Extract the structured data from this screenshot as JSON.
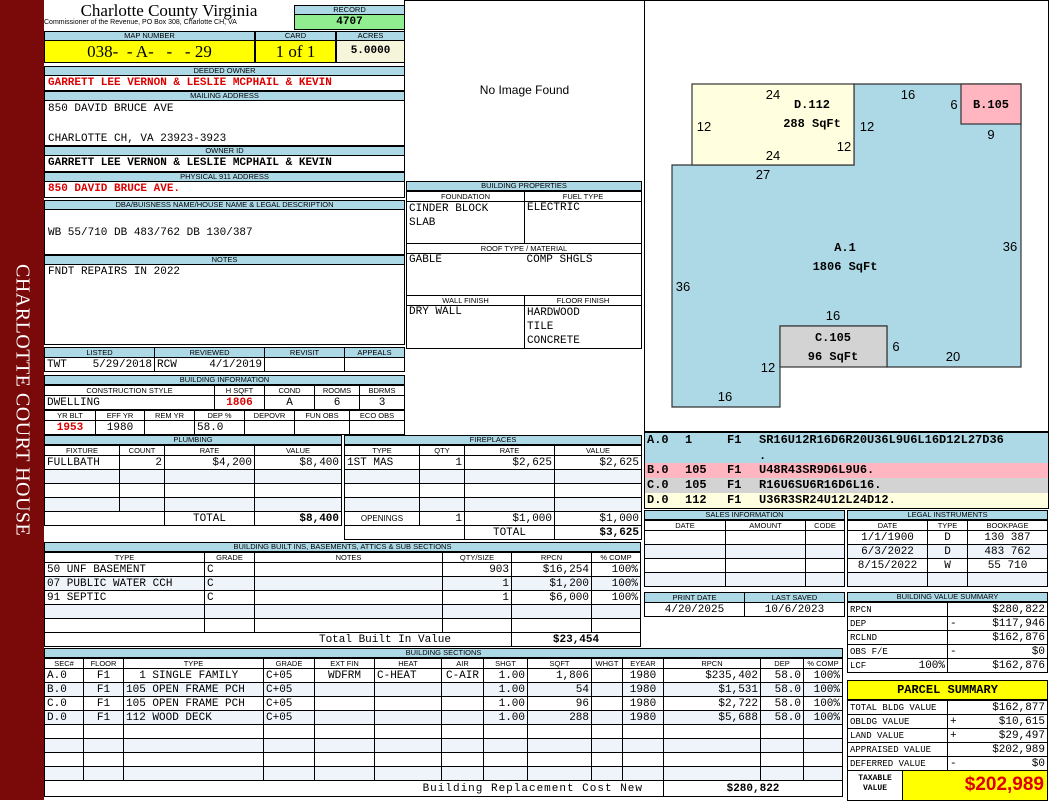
{
  "sidebar_title": "CHARLOTTE COURT HOUSE",
  "header": {
    "title": "Charlotte County Virginia",
    "subtitle": "Commissioner of the Revenue, PO Box 308, Charlotte CH, VA",
    "record_label": "RECORD",
    "record": "4707"
  },
  "parcel": {
    "map_label": "MAP NUMBER",
    "map": "038-  - A-   -   - 29",
    "card_label": "CARD",
    "card": "1 of 1",
    "acres_label": "ACRES",
    "acres": "5.0000"
  },
  "owner": {
    "deeded_label": "DEEDED OWNER",
    "deeded": "GARRETT LEE VERNON & LESLIE MCPHAIL & KEVIN",
    "mailing_label": "MAILING ADDRESS",
    "mailing_line1": "850 DAVID BRUCE AVE",
    "mailing_line2": "CHARLOTTE CH, VA 23923-3923",
    "owner_id_label": "OWNER ID",
    "owner_id": "GARRETT LEE VERNON & LESLIE MCPHAIL & KEVIN",
    "physical_label": "PHYSICAL 911 ADDRESS",
    "physical": "850 DAVID BRUCE AVE."
  },
  "legal": {
    "label": "DBA/BUISNESS NAME/HOUSE NAME & LEGAL DESCRIPTION",
    "text": "WB 55/710 DB 483/762 DB 130/387"
  },
  "notes": {
    "label": "NOTES",
    "text": "FNDT REPAIRS IN 2022"
  },
  "image": {
    "text": "No Image Found"
  },
  "building_properties": {
    "title": "BUILDING PROPERTIES",
    "foundation_label": "FOUNDATION",
    "foundation": [
      "CINDER BLOCK",
      "SLAB"
    ],
    "fuel_label": "FUEL TYPE",
    "fuel": "ELECTRIC",
    "roof_label": "ROOF TYPE / MATERIAL",
    "roof_type": "GABLE",
    "roof_material": "COMP SHGLS",
    "wall_label": "WALL FINISH",
    "wall": "DRY WALL",
    "floor_label": "FLOOR FINISH",
    "floor": [
      "HARDWOOD",
      "TILE",
      "CONCRETE"
    ]
  },
  "listing": {
    "columns": [
      "LISTED",
      "REVIEWED",
      "REVISIT",
      "APPEALS"
    ],
    "listed_by": "TWT",
    "listed_date": "5/29/2018",
    "reviewed_by": "RCW",
    "reviewed_date": "4/1/2019"
  },
  "building_info": {
    "title": "BUILDING INFORMATION",
    "columns1": [
      "CONSTRUCTION STYLE",
      "H SQFT",
      "COND",
      "ROOMS",
      "BDRMS"
    ],
    "values1": [
      "DWELLING",
      "1806",
      "A",
      "6",
      "3"
    ],
    "columns2": [
      "YR BLT",
      "EFF YR",
      "REM YR",
      "DEP %",
      "DEPOVR",
      "FUN OBS",
      "ECO OBS"
    ],
    "values2": [
      "1953",
      "1980",
      "",
      "58.0",
      "",
      "",
      ""
    ]
  },
  "plumbing": {
    "title": "PLUMBING",
    "columns": [
      "FIXTURE",
      "COUNT",
      "RATE",
      "VALUE"
    ],
    "rows": [
      [
        "FULLBATH",
        "2",
        "$4,200",
        "$8,400"
      ],
      [
        "",
        "",
        "",
        ""
      ],
      [
        "",
        "",
        "",
        ""
      ],
      [
        "",
        "",
        "",
        ""
      ]
    ],
    "total_label": "TOTAL",
    "total": "$8,400"
  },
  "fireplaces": {
    "title": "FIREPLACES",
    "columns": [
      "TYPE",
      "QTY",
      "RATE",
      "VALUE"
    ],
    "rows": [
      [
        "1ST MAS",
        "1",
        "$2,625",
        "$2,625"
      ],
      [
        "",
        "",
        "",
        ""
      ],
      [
        "",
        "",
        "",
        ""
      ],
      [
        "",
        "",
        "",
        ""
      ]
    ],
    "openings_label": "OPENINGS",
    "openings_qty": "1",
    "openings_rate": "$1,000",
    "openings_value": "$1,000",
    "total_label": "TOTAL",
    "total": "$3,625"
  },
  "built_ins": {
    "title": "BUILDING BUILT INS, BASEMENTS, ATTICS & SUB SECTIONS",
    "columns": [
      "TYPE",
      "GRADE",
      "NOTES",
      "QTY/SIZE",
      "RPCN",
      "% COMP"
    ],
    "rows": [
      [
        "50 UNF BASEMENT",
        "C",
        "",
        "903",
        "$16,254",
        "100%"
      ],
      [
        "07 PUBLIC WATER CCH",
        "C",
        "",
        "1",
        "$1,200",
        "100%"
      ],
      [
        "91 SEPTIC",
        "C",
        "",
        "1",
        "$6,000",
        "100%"
      ],
      [
        "",
        "",
        "",
        "",
        "",
        ""
      ],
      [
        "",
        "",
        "",
        "",
        "",
        ""
      ]
    ],
    "total_label": "Total Built In Value",
    "total": "$23,454"
  },
  "sections": {
    "title": "BUILDING SECTIONS",
    "columns": [
      "SEC#",
      "FLOOR",
      "TYPE",
      "GRADE",
      "EXT FIN",
      "HEAT",
      "AIR",
      "SHGT",
      "SQFT",
      "WHGT",
      "EYEAR",
      "RPCN",
      "DEP",
      "% COMP"
    ],
    "rows": [
      [
        "A.0",
        "F1",
        "  1 SINGLE FAMILY",
        "C+05",
        "WDFRM",
        "C-HEAT",
        "C-AIR",
        "1.00",
        "1,806",
        "",
        "1980",
        "$235,402",
        "58.0",
        "100%"
      ],
      [
        "B.0",
        "F1",
        "105 OPEN FRAME PCH",
        "C+05",
        "",
        "",
        "",
        "1.00",
        "54",
        "",
        "1980",
        "$1,531",
        "58.0",
        "100%"
      ],
      [
        "C.0",
        "F1",
        "105 OPEN FRAME PCH",
        "C+05",
        "",
        "",
        "",
        "1.00",
        "96",
        "",
        "1980",
        "$2,722",
        "58.0",
        "100%"
      ],
      [
        "D.0",
        "F1",
        "112 WOOD DECK",
        "C+05",
        "",
        "",
        "",
        "1.00",
        "288",
        "",
        "1980",
        "$5,688",
        "58.0",
        "100%"
      ],
      [
        "",
        "",
        "",
        "",
        "",
        "",
        "",
        "",
        "",
        "",
        "",
        "",
        "",
        ""
      ],
      [
        "",
        "",
        "",
        "",
        "",
        "",
        "",
        "",
        "",
        "",
        "",
        "",
        "",
        ""
      ],
      [
        "",
        "",
        "",
        "",
        "",
        "",
        "",
        "",
        "",
        "",
        "",
        "",
        "",
        ""
      ],
      [
        "",
        "",
        "",
        "",
        "",
        "",
        "",
        "",
        "",
        "",
        "",
        "",
        "",
        ""
      ]
    ],
    "total_label": "Building Replacement Cost New",
    "total": "$280,822"
  },
  "sketch": {
    "colors": {
      "A": "#add8e6",
      "B": "#ffb6c1",
      "C": "#d3d3d3",
      "D": "#ffffe0"
    },
    "labels": [
      "24",
      "D.112",
      "288 SqFt",
      "12",
      "12",
      "12",
      "24",
      "16",
      "6",
      "B.105",
      "9",
      "27",
      "A.1",
      "1806 SqFt",
      "36",
      "36",
      "16",
      "C.105",
      "96 SqFt",
      "6",
      "20",
      "12",
      "16"
    ]
  },
  "sketch_codes": [
    {
      "sec": "A.0",
      "code": "1",
      "floor": "F1",
      "vectors": "SR16U12R16D6R20U36L9U6L16D12L27D36",
      "cont": ".",
      "color": "#add8e6"
    },
    {
      "sec": "B.0",
      "code": "105",
      "floor": "F1",
      "vectors": "U48R43SR9D6L9U6.",
      "color": "#ffb6c1"
    },
    {
      "sec": "C.0",
      "code": "105",
      "floor": "F1",
      "vectors": "R16U6SU6R16D6L16.",
      "color": "#d3d3d3"
    },
    {
      "sec": "D.0",
      "code": "112",
      "floor": "F1",
      "vectors": "U36R3SR24U12L24D12.",
      "color": "#ffffe0"
    }
  ],
  "sales": {
    "title": "SALES INFORMATION",
    "columns": [
      "DATE",
      "AMOUNT",
      "CODE"
    ],
    "rows": [
      [
        "",
        "",
        ""
      ],
      [
        "",
        "",
        ""
      ],
      [
        "",
        "",
        ""
      ],
      [
        "",
        "",
        ""
      ]
    ]
  },
  "legal_instruments": {
    "title": "LEGAL INSTRUMENTS",
    "columns": [
      "DATE",
      "TYPE",
      "BOOKPAGE"
    ],
    "rows": [
      [
        "1/1/1900",
        "D",
        "130 387"
      ],
      [
        "6/3/2022",
        "D",
        "483 762"
      ],
      [
        "8/15/2022",
        "W",
        "55 710"
      ],
      [
        "",
        "",
        ""
      ]
    ]
  },
  "dates": {
    "print_label": "PRINT DATE",
    "print": "4/20/2025",
    "saved_label": "LAST SAVED",
    "saved": "10/6/2023"
  },
  "value_summary": {
    "title": "BUILDING VALUE SUMMARY",
    "rows": [
      [
        "RPCN",
        "",
        "",
        "$280,822"
      ],
      [
        "DEP",
        "",
        "-",
        "$117,946"
      ],
      [
        "RCLND",
        "",
        "",
        "$162,876"
      ],
      [
        "OBS F/E",
        "",
        "-",
        "$0"
      ],
      [
        "LCF",
        "100%",
        "",
        "$162,876"
      ]
    ]
  },
  "parcel_summary": {
    "title": "PARCEL SUMMARY",
    "rows": [
      [
        "TOTAL BLDG VALUE",
        "",
        "$162,877"
      ],
      [
        "OBLDG VALUE",
        "+",
        "$10,615"
      ],
      [
        "LAND VALUE",
        "+",
        "$29,497"
      ],
      [
        "APPRAISED VALUE",
        "",
        "$202,989"
      ],
      [
        "DEFERRED VALUE",
        "-",
        "$0"
      ]
    ],
    "taxable_label": "TAXABLE VALUE",
    "taxable": "$202,989"
  }
}
